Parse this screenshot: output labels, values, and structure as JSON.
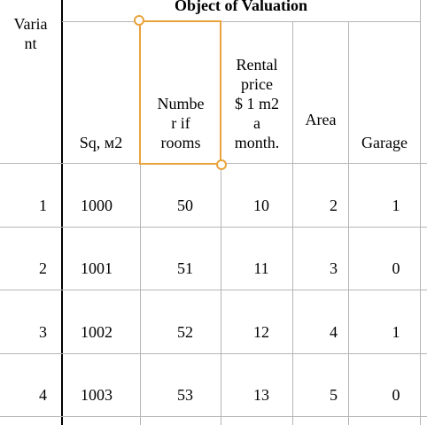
{
  "table": {
    "group_header": "Object of Valuation",
    "variant_header": "Varia\nnt",
    "columns": [
      {
        "key": "sq",
        "label": "Sq, м2"
      },
      {
        "key": "rooms",
        "label": "Numbe\nr if\nrooms"
      },
      {
        "key": "rent",
        "label": "Rental\nprice\n$ 1 m2\na\nmonth."
      },
      {
        "key": "area",
        "label": "Area"
      },
      {
        "key": "garage",
        "label": "Garage"
      }
    ],
    "rows": [
      {
        "variant": "1",
        "sq": "1000",
        "rooms": "50",
        "rent": "10",
        "area": "2",
        "garage": "1"
      },
      {
        "variant": "2",
        "sq": "1001",
        "rooms": "51",
        "rent": "11",
        "area": "3",
        "garage": "0"
      },
      {
        "variant": "3",
        "sq": "1002",
        "rooms": "52",
        "rent": "12",
        "area": "4",
        "garage": "1"
      },
      {
        "variant": "4",
        "sq": "1003",
        "rooms": "53",
        "rent": "13",
        "area": "5",
        "garage": "0"
      }
    ]
  },
  "selection": {
    "column": "rooms",
    "color": "#e8a33d"
  },
  "colors": {
    "grid": "#b5b5b5",
    "thick_border": "#000000"
  }
}
